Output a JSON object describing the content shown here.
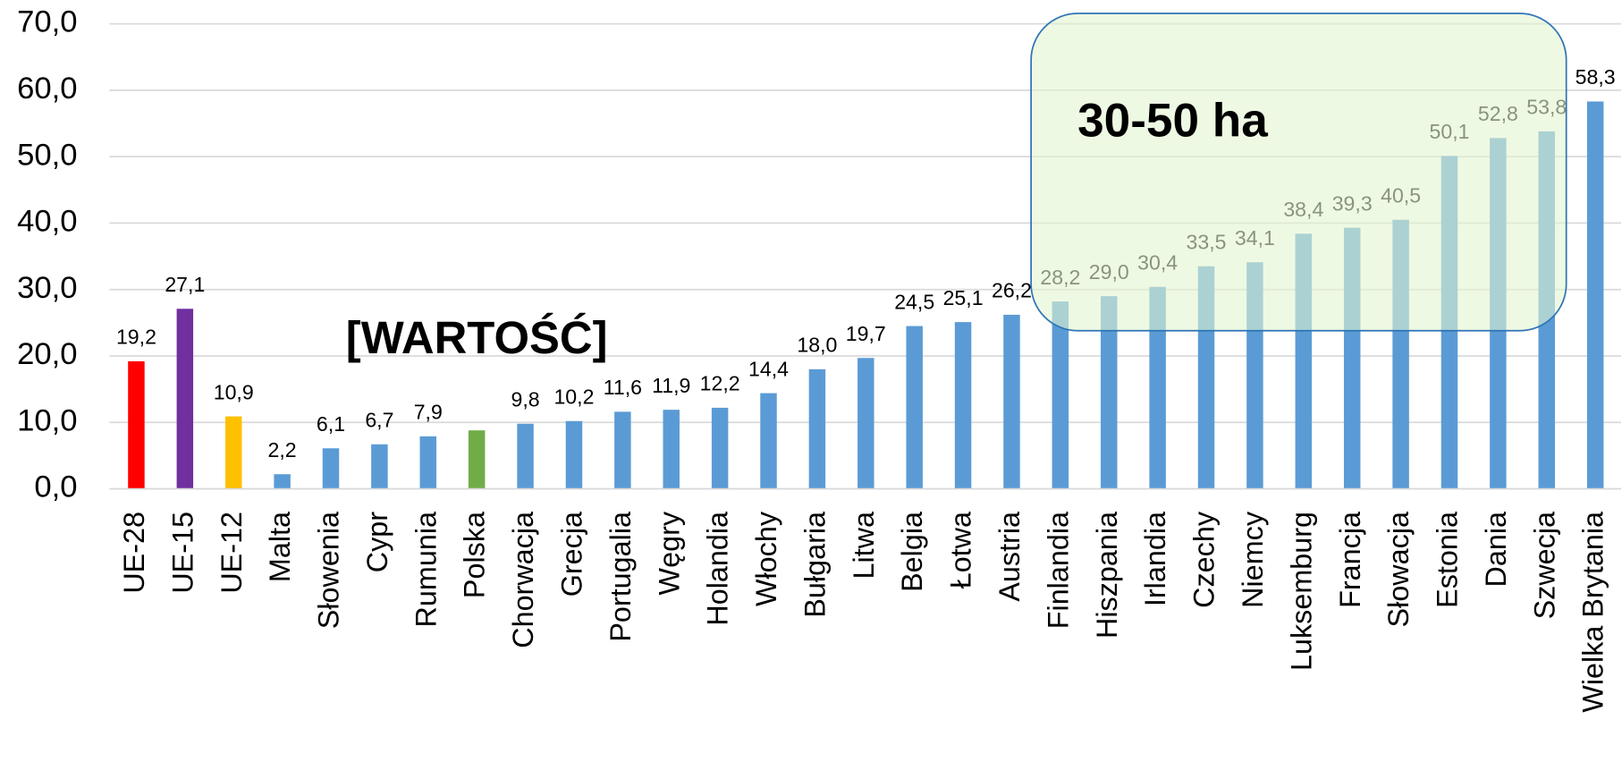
{
  "chart_data": {
    "type": "bar",
    "categories": [
      "UE-28",
      "UE-15",
      "UE-12",
      "Malta",
      "Słowenia",
      "Cypr",
      "Rumunia",
      "Polska",
      "Chorwacja",
      "Grecja",
      "Portugalia",
      "Węgry",
      "Holandia",
      "Włochy",
      "Bułgaria",
      "Litwa",
      "Belgia",
      "Łotwa",
      "Austria",
      "Finlandia",
      "Hiszpania",
      "Irlandia",
      "Czechy",
      "Niemcy",
      "Luksemburg",
      "Francja",
      "Słowacja",
      "Estonia",
      "Dania",
      "Szwecja",
      "Wielka Brytania"
    ],
    "values": [
      19.2,
      27.1,
      10.9,
      2.2,
      6.1,
      6.7,
      7.9,
      8.8,
      9.8,
      10.2,
      11.6,
      11.9,
      12.2,
      14.4,
      18.0,
      19.7,
      24.5,
      25.1,
      26.2,
      28.2,
      29.0,
      30.4,
      33.5,
      34.1,
      38.4,
      39.3,
      40.5,
      50.1,
      52.8,
      53.8,
      58.3
    ],
    "value_labels": [
      "19,2",
      "27,1",
      "10,9",
      "2,2",
      "6,1",
      "6,7",
      "7,9",
      "[WARTOŚĆ]",
      "9,8",
      "10,2",
      "11,6",
      "11,9",
      "12,2",
      "14,4",
      "18,0",
      "19,7",
      "24,5",
      "25,1",
      "26,2",
      "28,2",
      "29,0",
      "30,4",
      "33,5",
      "34,1",
      "38,4",
      "39,3",
      "40,5",
      "50,1",
      "52,8",
      "53,8",
      "58,3"
    ],
    "colors": [
      "#ff0000",
      "#7030a0",
      "#ffc000",
      "#5b9bd5",
      "#5b9bd5",
      "#5b9bd5",
      "#5b9bd5",
      "#70ad47",
      "#5b9bd5",
      "#5b9bd5",
      "#5b9bd5",
      "#5b9bd5",
      "#5b9bd5",
      "#5b9bd5",
      "#5b9bd5",
      "#5b9bd5",
      "#5b9bd5",
      "#5b9bd5",
      "#5b9bd5",
      "#5b9bd5",
      "#5b9bd5",
      "#5b9bd5",
      "#5b9bd5",
      "#5b9bd5",
      "#5b9bd5",
      "#5b9bd5",
      "#5b9bd5",
      "#5b9bd5",
      "#5b9bd5",
      "#5b9bd5",
      "#5b9bd5"
    ],
    "ylim": [
      0,
      70
    ],
    "yticks": [
      {
        "value": 0,
        "label": "0,0"
      },
      {
        "value": 10,
        "label": "10,0"
      },
      {
        "value": 20,
        "label": "20,0"
      },
      {
        "value": 30,
        "label": "30,0"
      },
      {
        "value": 40,
        "label": "40,0"
      },
      {
        "value": 50,
        "label": "50,0"
      },
      {
        "value": 60,
        "label": "60,0"
      },
      {
        "value": 70,
        "label": "70,0"
      }
    ],
    "grid": true,
    "annotation": "30-50 ha"
  }
}
